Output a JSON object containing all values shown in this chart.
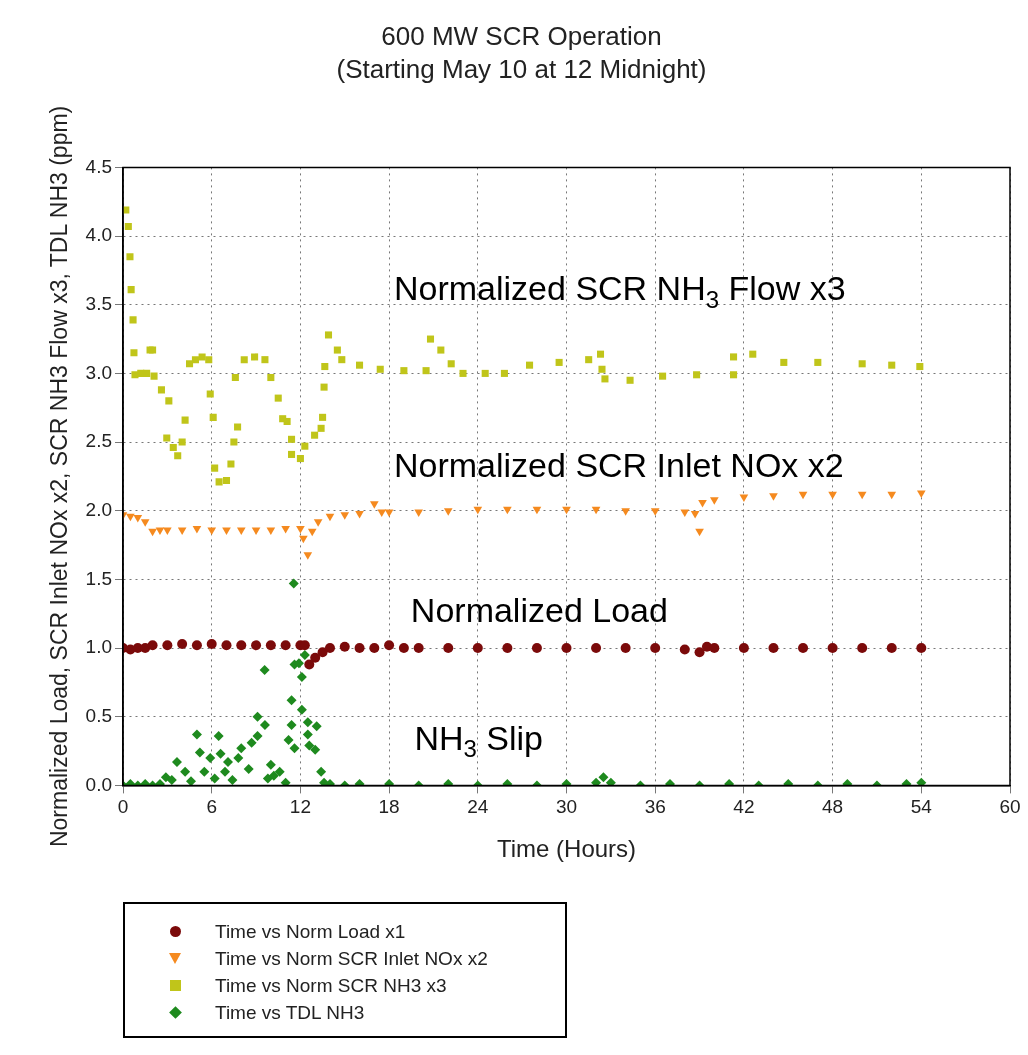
{
  "chart_data": {
    "type": "scatter",
    "title": "600 MW SCR Operation",
    "subtitle": "(Starting May 10 at 12 Midnight)",
    "xlabel": "Time (Hours)",
    "ylabel": "Normalized Load, SCR Inlet NOx x2, SCR NH3 Flow x3, TDL NH3 (ppm)",
    "xlim": [
      0,
      60
    ],
    "xticks": [
      0,
      6,
      12,
      18,
      24,
      30,
      36,
      42,
      48,
      54,
      60
    ],
    "ylim": [
      0,
      4.5
    ],
    "yticks": [
      {
        "value": 0,
        "label": "0.0"
      },
      0.5,
      {
        "value": 1,
        "label": "1.0"
      },
      1.5,
      {
        "value": 2,
        "label": "2.0"
      },
      2.5,
      {
        "value": 3,
        "label": "3.0"
      },
      3.5,
      {
        "value": 4,
        "label": "4.0"
      },
      4.5
    ],
    "grid": true,
    "legend": "bottom",
    "annotations": [
      "Normalized SCR NH$_{3}$ Flow x3",
      "Normalized SCR Inlet NOx x2",
      "Normalized Load",
      "NH$_{3}$ Slip"
    ],
    "series": [
      {
        "name": "Time vs Norm Load x1",
        "color": "#7b0a0a",
        "marker": "circle",
        "x": [
          0,
          0.5,
          1,
          1.5,
          2,
          3,
          4,
          5,
          6,
          7,
          8,
          9,
          10,
          11,
          12,
          12.3,
          12.6,
          13,
          13.5,
          14,
          15,
          16,
          17,
          18,
          19,
          20,
          22,
          24,
          26,
          28,
          30,
          32,
          34,
          36,
          38,
          39,
          39.5,
          40,
          42,
          44,
          46,
          48,
          50,
          52,
          54
        ],
        "values": [
          1.0,
          0.99,
          1.0,
          1.0,
          1.02,
          1.02,
          1.03,
          1.02,
          1.03,
          1.02,
          1.02,
          1.02,
          1.02,
          1.02,
          1.02,
          1.02,
          0.88,
          0.93,
          0.97,
          1.0,
          1.01,
          1.0,
          1.0,
          1.02,
          1.0,
          1.0,
          1.0,
          1.0,
          1.0,
          1.0,
          1.0,
          1.0,
          1.0,
          1.0,
          0.99,
          0.97,
          1.01,
          1.0,
          1.0,
          1.0,
          1.0,
          1.0,
          1.0,
          1.0,
          1.0
        ]
      },
      {
        "name": "Time vs Norm SCR Inlet NOx x2",
        "color": "#f58a1f",
        "marker": "triangle",
        "x": [
          0,
          0.5,
          1,
          1.5,
          2,
          2.5,
          3,
          4,
          5,
          6,
          7,
          8,
          9,
          10,
          11,
          12,
          12.2,
          12.5,
          12.8,
          13.2,
          14,
          15,
          16,
          17,
          17.5,
          18,
          20,
          22,
          24,
          26,
          28,
          30,
          32,
          34,
          36,
          38,
          38.7,
          39,
          39.2,
          40,
          42,
          44,
          46,
          48,
          50,
          52,
          54
        ],
        "values": [
          1.97,
          1.96,
          1.95,
          1.92,
          1.85,
          1.86,
          1.86,
          1.86,
          1.87,
          1.86,
          1.86,
          1.86,
          1.86,
          1.86,
          1.87,
          1.87,
          1.8,
          1.68,
          1.85,
          1.92,
          1.96,
          1.97,
          1.98,
          2.05,
          1.99,
          1.99,
          1.99,
          2.0,
          2.01,
          2.01,
          2.01,
          2.01,
          2.01,
          2.0,
          2.0,
          1.99,
          1.98,
          1.85,
          2.06,
          2.08,
          2.1,
          2.11,
          2.12,
          2.12,
          2.12,
          2.12,
          2.13
        ]
      },
      {
        "name": "Time vs Norm SCR NH3 x3",
        "color": "#c0c51a",
        "marker": "square",
        "x": [
          0.19,
          0.36,
          0.47,
          0.55,
          0.68,
          0.74,
          0.81,
          1.2,
          1.6,
          1.83,
          2.0,
          2.1,
          2.6,
          3.1,
          2.96,
          3.4,
          3.7,
          4.0,
          4.2,
          4.5,
          4.9,
          5.35,
          5.8,
          5.9,
          6.1,
          6.2,
          6.5,
          7.0,
          7.3,
          7.5,
          7.75,
          7.6,
          8.2,
          8.9,
          9.6,
          10.0,
          10.5,
          10.8,
          11.1,
          11.4,
          11.4,
          12.0,
          12.3,
          12.96,
          13.4,
          13.5,
          13.6,
          13.65,
          13.9,
          14.5,
          14.8,
          16,
          17.4,
          19,
          20.5,
          20.8,
          21.5,
          22.2,
          23,
          24.5,
          25.8,
          27.5,
          29.5,
          31.5,
          32.3,
          32.4,
          32.6,
          34.3,
          36.5,
          38.8,
          41.3,
          41.3,
          42.6,
          44.7,
          47,
          50,
          52,
          53.9
        ],
        "values": [
          4.19,
          4.07,
          3.85,
          3.61,
          3.39,
          3.15,
          2.99,
          3.0,
          3.0,
          3.17,
          3.17,
          2.98,
          2.88,
          2.8,
          2.53,
          2.46,
          2.4,
          2.5,
          2.66,
          3.07,
          3.1,
          3.12,
          3.1,
          2.85,
          2.68,
          2.31,
          2.21,
          2.22,
          2.34,
          2.5,
          2.61,
          2.97,
          3.1,
          3.12,
          3.1,
          2.97,
          2.82,
          2.67,
          2.65,
          2.52,
          2.41,
          2.38,
          2.47,
          2.55,
          2.6,
          2.68,
          2.9,
          3.05,
          3.28,
          3.17,
          3.1,
          3.06,
          3.03,
          3.02,
          3.02,
          3.25,
          3.17,
          3.07,
          3.0,
          3.0,
          3.0,
          3.06,
          3.08,
          3.1,
          3.14,
          3.03,
          2.96,
          2.95,
          2.98,
          2.99,
          2.99,
          3.12,
          3.14,
          3.08,
          3.08,
          3.07,
          3.06,
          3.05
        ]
      },
      {
        "name": "Time vs TDL NH3",
        "color": "#1e8a1e",
        "marker": "diamond",
        "x": [
          0,
          0.5,
          1,
          1.5,
          2,
          2.5,
          2.9,
          3.3,
          3.65,
          4.2,
          4.6,
          5.0,
          5.2,
          5.5,
          5.9,
          6.2,
          6.47,
          6.6,
          6.9,
          7.1,
          7.4,
          7.8,
          8.0,
          8.5,
          8.7,
          9.1,
          9.1,
          9.58,
          9.6,
          9.8,
          10.0,
          10.2,
          10.6,
          11.0,
          11.2,
          11.4,
          11.4,
          11.55,
          11.6,
          11.6,
          11.9,
          12.1,
          12.1,
          12.3,
          12.5,
          12.5,
          12.6,
          13.0,
          13.1,
          13.4,
          13.6,
          14,
          15,
          16,
          18,
          20,
          22,
          24,
          26,
          28,
          30,
          32,
          32.5,
          33,
          35,
          37,
          39,
          41,
          43,
          45,
          47,
          49,
          51,
          53,
          54
        ],
        "values": [
          0.0,
          0.01,
          0.0,
          0.01,
          0.0,
          0.01,
          0.06,
          0.04,
          0.17,
          0.1,
          0.03,
          0.37,
          0.24,
          0.1,
          0.2,
          0.05,
          0.36,
          0.23,
          0.1,
          0.17,
          0.04,
          0.2,
          0.27,
          0.12,
          0.31,
          0.36,
          0.5,
          0.84,
          0.44,
          0.05,
          0.15,
          0.07,
          0.1,
          0.02,
          0.33,
          0.44,
          0.62,
          1.47,
          0.27,
          0.88,
          0.89,
          0.55,
          0.79,
          0.95,
          0.46,
          0.37,
          0.29,
          0.26,
          0.43,
          0.1,
          0.02,
          0.01,
          0.0,
          0.01,
          0.01,
          0.0,
          0.01,
          0.0,
          0.01,
          0.0,
          0.01,
          0.02,
          0.06,
          0.02,
          0.0,
          0.01,
          0.0,
          0.01,
          0.0,
          0.01,
          0.0,
          0.01,
          0.0,
          0.01,
          0.02
        ]
      }
    ]
  }
}
